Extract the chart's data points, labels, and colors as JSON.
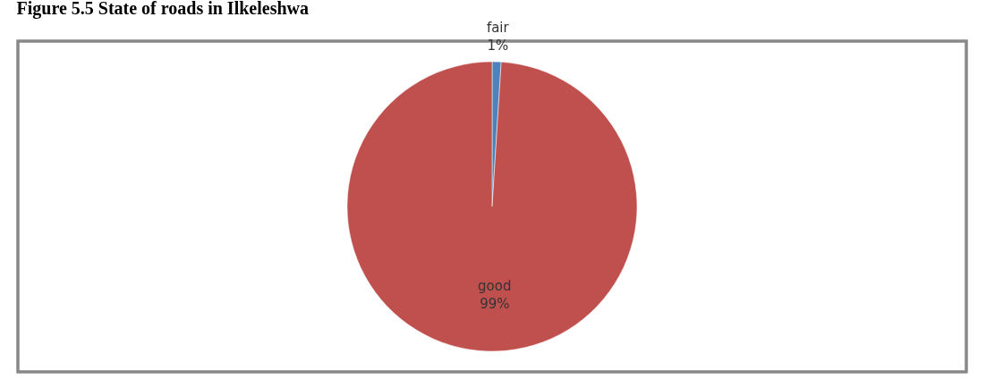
{
  "chart_data": {
    "type": "pie",
    "title": "Figure 5.5 State of roads in Ilkeleshwa",
    "categories": [
      "fair",
      "good"
    ],
    "values": [
      1,
      99
    ],
    "colors": [
      "#4f81bd",
      "#c0504d"
    ],
    "value_labels": [
      "1%",
      "99%"
    ],
    "legend": false
  }
}
